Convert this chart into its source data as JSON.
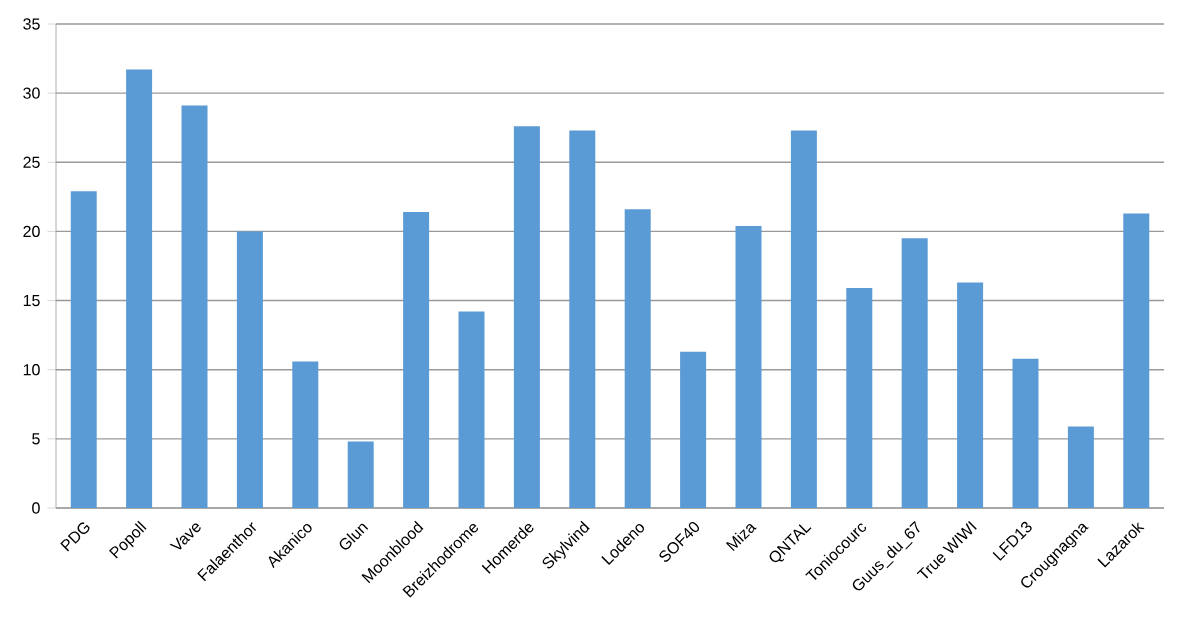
{
  "chart_data": {
    "type": "bar",
    "categories": [
      "PDG",
      "Popoll",
      "Vave",
      "Falaenthor",
      "Akanico",
      "Glun",
      "Moonblood",
      "Breizhodrome",
      "Homerde",
      "Skylvind",
      "Lodeno",
      "SOF40",
      "Miza",
      "QNTAL",
      "Toniocourc",
      "Guus_du_67",
      "True WIWI",
      "LFD13",
      "Crougnagna",
      "Lazarok"
    ],
    "values": [
      22.9,
      31.7,
      29.1,
      20.0,
      10.6,
      4.8,
      21.4,
      14.2,
      27.6,
      27.3,
      21.6,
      11.3,
      20.4,
      27.3,
      15.9,
      19.5,
      16.3,
      10.8,
      5.9,
      21.3
    ],
    "color": "#5b9bd5",
    "ylim": [
      0,
      35
    ],
    "yticks": [
      0,
      5,
      10,
      15,
      20,
      25,
      30,
      35
    ],
    "grid": "y"
  }
}
